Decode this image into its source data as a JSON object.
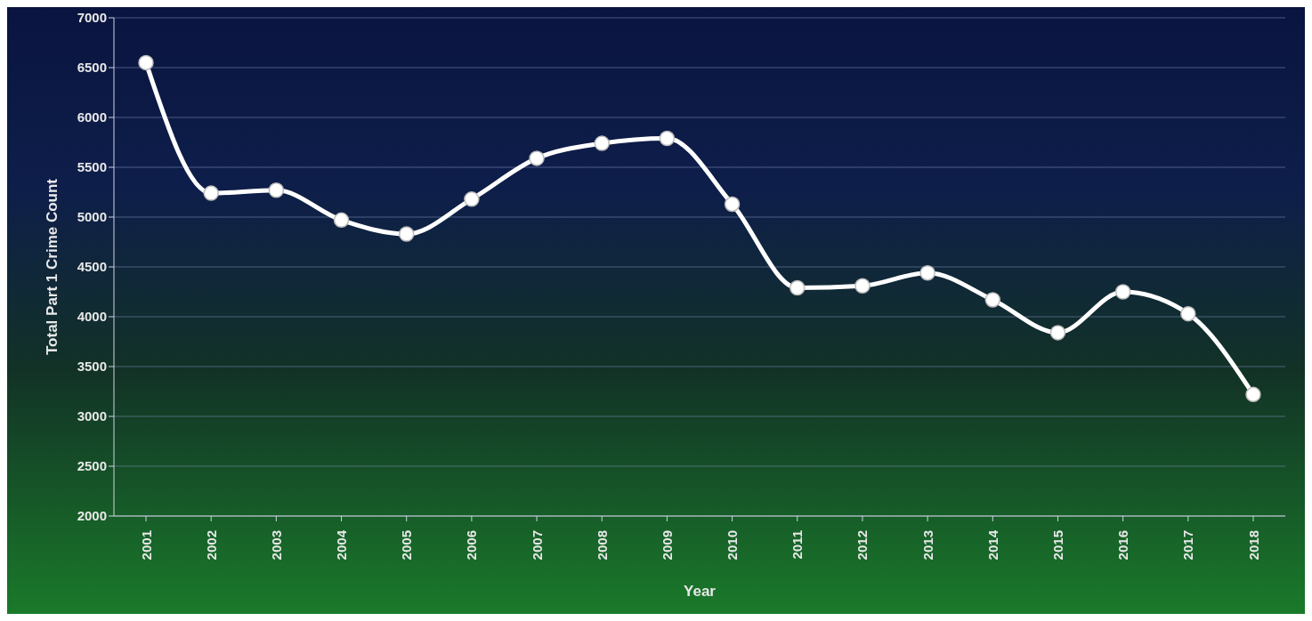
{
  "chart_data": {
    "type": "line",
    "xlabel": "Year",
    "ylabel": "Total Part 1 Crime Count",
    "categories": [
      "2001",
      "2002",
      "2003",
      "2004",
      "2005",
      "2006",
      "2007",
      "2008",
      "2009",
      "2010",
      "2011",
      "2012",
      "2013",
      "2014",
      "2015",
      "2016",
      "2017",
      "2018"
    ],
    "series": [
      {
        "color": "#ffffff",
        "values": [
          6550,
          5240,
          5270,
          4970,
          4830,
          5180,
          5590,
          5740,
          5790,
          5130,
          4290,
          4310,
          4440,
          4170,
          3840,
          4250,
          4030,
          3220
        ]
      }
    ],
    "ylim": [
      2000,
      7000
    ],
    "yticks": [
      2000,
      2500,
      3000,
      3500,
      4000,
      4500,
      5000,
      5500,
      6000,
      6500,
      7000
    ],
    "grid": "y",
    "legend": false,
    "marker": "circle",
    "line_style": "solid"
  }
}
